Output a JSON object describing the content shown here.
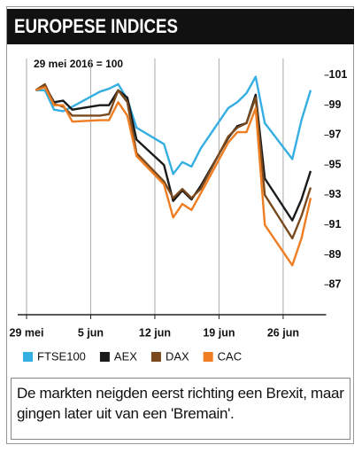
{
  "title": "EUROPESE INDICES",
  "chart_data": {
    "type": "line",
    "subtitle": "29 mei 2016 = 100",
    "x": [
      1,
      2,
      3,
      4,
      5,
      8,
      9,
      10,
      11,
      12,
      15,
      16,
      17,
      18,
      19,
      22,
      23,
      24,
      25,
      26,
      29,
      30,
      31
    ],
    "xlim": [
      0,
      32.5
    ],
    "xticks": [
      {
        "value": 0,
        "label": "29 mei"
      },
      {
        "value": 7,
        "label": "5 jun"
      },
      {
        "value": 14,
        "label": "12 jun"
      },
      {
        "value": 21,
        "label": "19 jun"
      },
      {
        "value": 28,
        "label": "26 jun"
      }
    ],
    "ylim": [
      85,
      102
    ],
    "yticks": [
      87,
      89,
      91,
      93,
      95,
      97,
      99,
      101
    ],
    "grid": true,
    "series": [
      {
        "name": "FTSE100",
        "color": "#35aee2",
        "values": [
          100,
          100,
          98.7,
          98.6,
          98.9,
          99.9,
          100.1,
          100.4,
          99.4,
          97.5,
          96.4,
          94.4,
          95.2,
          94.9,
          96.1,
          98.8,
          99.2,
          99.8,
          100.9,
          97.8,
          95.4,
          98,
          100
        ]
      },
      {
        "name": "AEX",
        "color": "#1a1a1a",
        "values": [
          100,
          100.3,
          99.2,
          99.3,
          98.7,
          99,
          99,
          100,
          99.5,
          96.7,
          95,
          92.6,
          93.3,
          92.7,
          93.6,
          96.8,
          97.6,
          97.8,
          99.7,
          94.1,
          91.3,
          92.7,
          94.6
        ]
      },
      {
        "name": "DAX",
        "color": "#7a4a1e",
        "values": [
          100,
          100.4,
          99.1,
          98.9,
          98.3,
          98.3,
          98.4,
          100,
          99.2,
          95.8,
          93.9,
          92.8,
          93.4,
          92.8,
          93.4,
          96.9,
          97.5,
          97.8,
          99.5,
          93,
          90.1,
          91.6,
          93.5
        ]
      },
      {
        "name": "CAC",
        "color": "#ef7d22",
        "values": [
          100,
          100.2,
          99,
          99,
          97.9,
          98,
          98,
          99.2,
          98.3,
          95.6,
          93.7,
          91.5,
          92.4,
          92,
          93.1,
          96.5,
          97.2,
          97.2,
          98.8,
          91,
          88.3,
          90.1,
          92.8
        ]
      }
    ]
  },
  "caption": "De markten neigden eerst richting een Brexit, maar gingen later uit van een 'Bremain'."
}
